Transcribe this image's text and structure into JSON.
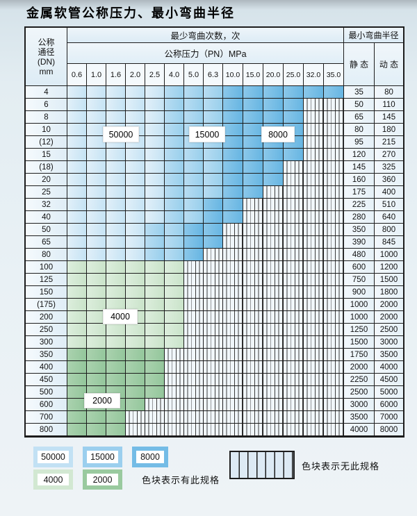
{
  "title": "金属软管公称压力、最小弯曲半径",
  "table": {
    "corner_lines": [
      "公称",
      "通径",
      "(DN)",
      "mm"
    ],
    "bend_header": "最少弯曲次数，次",
    "pressure_header": "公称压力（PN）MPa",
    "radius_header": "最小弯曲半径",
    "static_label": "静 态",
    "dynamic_label": "动 态",
    "pressures": [
      "0.6",
      "1.0",
      "1.6",
      "2.0",
      "2.5",
      "4.0",
      "5.0",
      "6.3",
      "10.0",
      "15.0",
      "20.0",
      "25.0",
      "32.0",
      "35.0"
    ],
    "rows": [
      {
        "dn": "4",
        "zones": "AAAAABBBCCCCCC",
        "static": "35",
        "dynamic": "80"
      },
      {
        "dn": "6",
        "zones": "AAAAABBBCCCCXX",
        "static": "50",
        "dynamic": "110"
      },
      {
        "dn": "8",
        "zones": "AAAAABBBCCCCXX",
        "static": "65",
        "dynamic": "145"
      },
      {
        "dn": "10",
        "zones": "AAAAABBBCCCCXX",
        "static": "80",
        "dynamic": "180"
      },
      {
        "dn": "(12)",
        "zones": "AAAAABBBCCCCXX",
        "static": "95",
        "dynamic": "215"
      },
      {
        "dn": "15",
        "zones": "AAAAABBBCCCCXX",
        "static": "120",
        "dynamic": "270"
      },
      {
        "dn": "(18)",
        "zones": "AAAAABBBCCCXXX",
        "static": "145",
        "dynamic": "325"
      },
      {
        "dn": "20",
        "zones": "AAAAABBBCCCXXX",
        "static": "160",
        "dynamic": "360"
      },
      {
        "dn": "25",
        "zones": "AAAAABBBCCXXXX",
        "static": "175",
        "dynamic": "400"
      },
      {
        "dn": "32",
        "zones": "AAAAABBCCXXXXX",
        "static": "225",
        "dynamic": "510"
      },
      {
        "dn": "40",
        "zones": "AAAAABBCCXXXXX",
        "static": "280",
        "dynamic": "640"
      },
      {
        "dn": "50",
        "zones": "AAAABBCCXXXXXX",
        "static": "350",
        "dynamic": "800"
      },
      {
        "dn": "65",
        "zones": "AAAABBCCXXXXXX",
        "static": "390",
        "dynamic": "845"
      },
      {
        "dn": "80",
        "zones": "AAAABBCXXXXXXX",
        "static": "480",
        "dynamic": "1000"
      },
      {
        "dn": "100",
        "zones": "DDDDDDXXXXXXXX",
        "static": "600",
        "dynamic": "1200"
      },
      {
        "dn": "125",
        "zones": "DDDDDDXXXXXXXX",
        "static": "750",
        "dynamic": "1500"
      },
      {
        "dn": "150",
        "zones": "DDDDDDXXXXXXXX",
        "static": "900",
        "dynamic": "1800"
      },
      {
        "dn": "(175)",
        "zones": "DDDDDDXXXXXXXX",
        "static": "1000",
        "dynamic": "2000"
      },
      {
        "dn": "200",
        "zones": "DDDDDDXXXXXXXX",
        "static": "1000",
        "dynamic": "2000"
      },
      {
        "dn": "250",
        "zones": "DDDDDDXXXXXXXX",
        "static": "1250",
        "dynamic": "2500"
      },
      {
        "dn": "300",
        "zones": "DDDDDDXXXXXXXX",
        "static": "1500",
        "dynamic": "3000"
      },
      {
        "dn": "350",
        "zones": "EEEEEXXXXXXXXX",
        "static": "1750",
        "dynamic": "3500"
      },
      {
        "dn": "400",
        "zones": "EEEEEXXXXXXXXX",
        "static": "2000",
        "dynamic": "4000"
      },
      {
        "dn": "450",
        "zones": "EEEEEXXXXXXXXX",
        "static": "2250",
        "dynamic": "4500"
      },
      {
        "dn": "500",
        "zones": "EEEEEXXXXXXXXX",
        "static": "2500",
        "dynamic": "5000"
      },
      {
        "dn": "600",
        "zones": "EEEEXXXXXXXXXX",
        "static": "3000",
        "dynamic": "6000"
      },
      {
        "dn": "700",
        "zones": "EEEXXXXXXXXXXX",
        "static": "3500",
        "dynamic": "7000"
      },
      {
        "dn": "800",
        "zones": "EEEXXXXXXXXXXX",
        "static": "4000",
        "dynamic": "8000"
      }
    ]
  },
  "zone_codes": {
    "A": "50000",
    "B": "15000",
    "C": "8000",
    "D": "4000",
    "E": "2000",
    "X": "none"
  },
  "zone_colors": {
    "50000": [
      "#e2f0f9",
      "#c5e3f4"
    ],
    "15000": [
      "#b9ddf2",
      "#98cfec"
    ],
    "8000": [
      "#8cc8ea",
      "#66b5e2"
    ],
    "4000": [
      "#ddeedd",
      "#c9e3c9"
    ],
    "2000": [
      "#abd2af",
      "#93c69b"
    ],
    "none": [
      "#f1f7fb",
      "#f1f7fb"
    ]
  },
  "overlays": {
    "l50000": "50000",
    "l15000": "15000",
    "l8000": "8000",
    "l4000": "4000",
    "l2000": "2000"
  },
  "legend": {
    "row1": [
      {
        "value": "50000",
        "color": "#c2e1f4"
      },
      {
        "value": "15000",
        "color": "#9bcfee"
      },
      {
        "value": "8000",
        "color": "#74bce6"
      }
    ],
    "row2": [
      {
        "value": "4000",
        "color": "#d2e8d2"
      },
      {
        "value": "2000",
        "color": "#9aca9f"
      }
    ],
    "has_spec_text": "色块表示有此规格",
    "no_spec_text": "色块表示无此规格"
  }
}
